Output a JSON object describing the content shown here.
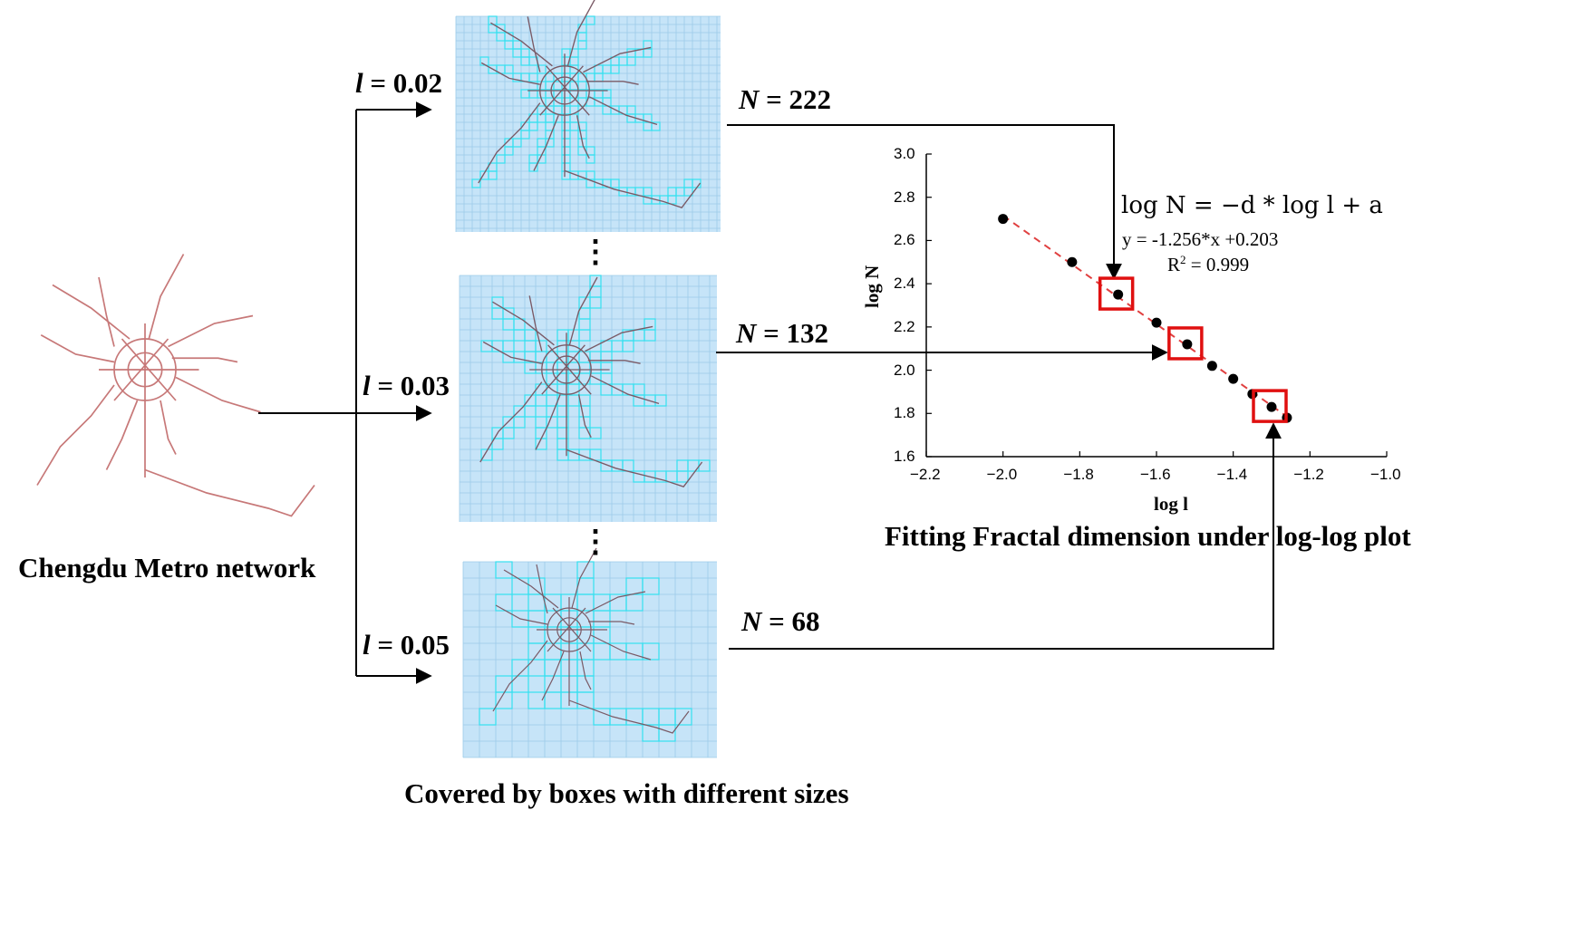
{
  "captions": {
    "network": "Chengdu Metro network",
    "boxes": "Covered by boxes with different sizes",
    "plot": "Fitting Fractal dimension under log-log plot"
  },
  "box_sizes": [
    {
      "sym": "l",
      "eq": " = 0.02",
      "count_sym": "N",
      "count_eq": " = 222"
    },
    {
      "sym": "l",
      "eq": " = 0.03",
      "count_sym": "N",
      "count_eq": " = 132"
    },
    {
      "sym": "l",
      "eq": " = 0.05",
      "count_sym": "N",
      "count_eq": " = 68"
    }
  ],
  "ellipsis": "⋮",
  "fit": {
    "formula": "log N = −d * log l + a",
    "equation": "y = -1.256*x +0.203",
    "r2_prefix": "R",
    "r2_sup": "2",
    "r2_value": " = 0.999"
  },
  "colors": {
    "metro_line": "#c77878",
    "grid_panel": "#c6e4f8",
    "grid_line": "#9ccbe8",
    "covered_box": "#35e0f0",
    "fit_line": "#e04040",
    "highlight_box": "#e01010"
  },
  "chart_data": {
    "type": "scatter",
    "xlabel": "log l",
    "ylabel": "log N",
    "xlim": [
      -2.2,
      -1.0
    ],
    "ylim": [
      1.6,
      3.0
    ],
    "x_ticks": [
      "−2.2",
      "−2.0",
      "−1.8",
      "−1.6",
      "−1.4",
      "−1.2",
      "−1.0"
    ],
    "y_ticks": [
      "1.6",
      "1.8",
      "2.0",
      "2.2",
      "2.4",
      "2.6",
      "2.8",
      "3.0"
    ],
    "points": [
      {
        "x": -2.0,
        "y": 2.7
      },
      {
        "x": -1.82,
        "y": 2.5
      },
      {
        "x": -1.7,
        "y": 2.35
      },
      {
        "x": -1.6,
        "y": 2.22
      },
      {
        "x": -1.52,
        "y": 2.12
      },
      {
        "x": -1.455,
        "y": 2.02
      },
      {
        "x": -1.4,
        "y": 1.96
      },
      {
        "x": -1.35,
        "y": 1.89
      },
      {
        "x": -1.3,
        "y": 1.83
      },
      {
        "x": -1.26,
        "y": 1.78
      }
    ],
    "highlighted_x": [
      -1.7,
      -1.52,
      -1.3
    ],
    "fit": {
      "slope": -1.256,
      "intercept": 0.203
    }
  }
}
